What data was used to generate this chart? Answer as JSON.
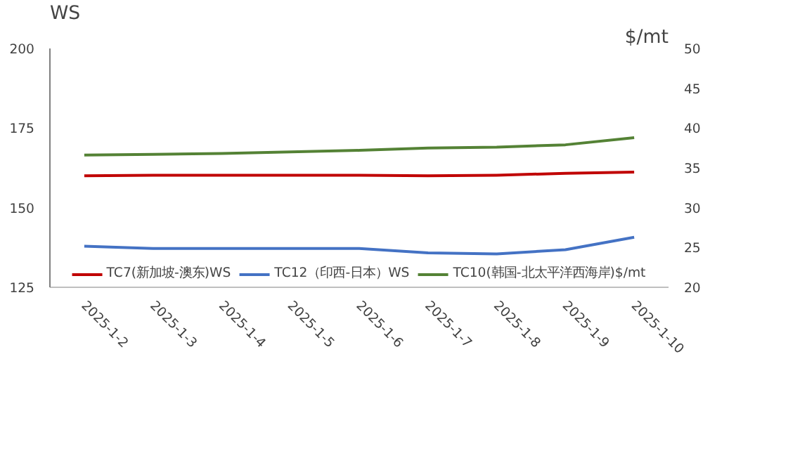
{
  "chart_data": {
    "type": "line",
    "ylabel": "WS",
    "y2label": "$/mt",
    "categories": [
      "2025-1-2",
      "2025-1-3",
      "2025-1-4",
      "2025-1-5",
      "2025-1-6",
      "2025-1-7",
      "2025-1-8",
      "2025-1-9",
      "2025-1-10"
    ],
    "series": [
      {
        "name": "TC7(新加坡-澳东)WS",
        "color": "#c00000",
        "values": [
          160.0,
          160.2,
          160.2,
          160.2,
          160.2,
          160.0,
          160.2,
          160.8,
          161.2
        ]
      },
      {
        "name": "TC12（印西-日本）WS",
        "color": "#4472c4",
        "values": [
          137.9,
          137.2,
          137.2,
          137.2,
          137.2,
          135.8,
          135.5,
          136.8,
          140.7
        ]
      },
      {
        "name": "TC10(韩国-北太平洋西海岸)$/mt",
        "color": "#548235",
        "axis": "y2",
        "values": [
          36.6,
          36.7,
          36.8,
          37.0,
          37.2,
          37.5,
          37.6,
          37.9,
          38.8
        ]
      }
    ],
    "ylim": [
      125,
      200
    ],
    "yticks": [
      125,
      150,
      175,
      200
    ],
    "y2lim": [
      20,
      50
    ],
    "y2ticks": [
      20,
      25,
      30,
      35,
      40,
      45,
      50
    ],
    "grid": false,
    "legend": "bottom"
  }
}
